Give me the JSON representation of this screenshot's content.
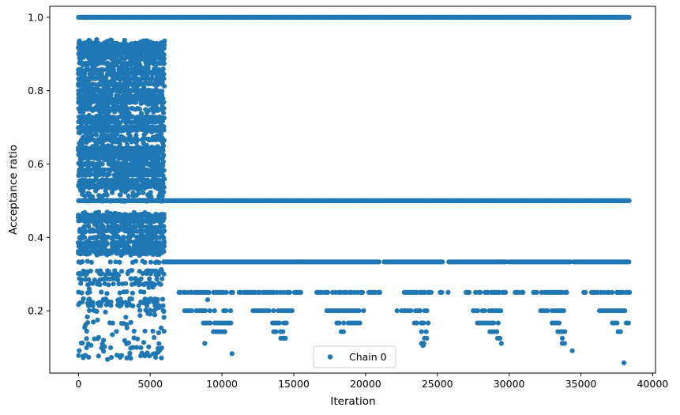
{
  "chart_data": {
    "type": "scatter",
    "title": "",
    "xlabel": "Iteration",
    "ylabel": "Acceptance ratio",
    "xlim": [
      -2000,
      40200
    ],
    "ylim": [
      0.03,
      1.03
    ],
    "xticks": [
      0,
      5000,
      10000,
      15000,
      20000,
      25000,
      30000,
      35000,
      40000
    ],
    "xtick_labels": [
      "0",
      "5000",
      "10000",
      "15000",
      "20000",
      "25000",
      "30000",
      "35000",
      "40000"
    ],
    "yticks": [
      0.2,
      0.4,
      0.6,
      0.8,
      1.0
    ],
    "ytick_labels": [
      "0.2",
      "0.4",
      "0.6",
      "0.8",
      "1.0"
    ],
    "grid": false,
    "legend": {
      "position": "lower-center",
      "entries": [
        "Chain 0"
      ]
    },
    "series": [
      {
        "name": "Chain 0",
        "color": "#1f77b4",
        "marker": "circle",
        "description": "Dense burn-in region 0–6000 with values spread between ~0.06 and ~0.94; afterwards values collapse onto discrete levels 1.0, 0.5, 0.333, 0.25, 0.2, 0.167, 0.143, 0.125, 0.111",
        "x_max": 38400,
        "burn_in_end": 6000,
        "levels_after_burn_in": [
          1.0,
          0.5,
          0.3333,
          0.25,
          0.2,
          0.1667,
          0.1429,
          0.125,
          0.1111,
          0.1
        ],
        "continuous_lines": [
          {
            "y": 1.0,
            "x": [
              0,
              38400
            ]
          },
          {
            "y": 0.5,
            "x": [
              0,
              38400
            ]
          }
        ],
        "segmented_levels": [
          {
            "y": 0.3333,
            "segments": [
              [
                6000,
                15800
              ],
              [
                15900,
                21000
              ],
              [
                21300,
                25400
              ],
              [
                25800,
                29800
              ],
              [
                30000,
                34300
              ],
              [
                34500,
                38400
              ]
            ]
          },
          {
            "y": 0.25,
            "segments": [
              [
                7000,
                10800
              ],
              [
                11200,
                15500
              ],
              [
                16600,
                21000
              ],
              [
                22700,
                24600
              ],
              [
                25200,
                25800
              ],
              [
                27000,
                29800
              ],
              [
                30200,
                31000
              ],
              [
                31700,
                34200
              ],
              [
                35200,
                38400
              ]
            ]
          },
          {
            "y": 0.2,
            "segments": [
              [
                7400,
                10900
              ],
              [
                12000,
                15000
              ],
              [
                17300,
                19900
              ],
              [
                22200,
                24300
              ],
              [
                27500,
                29700
              ],
              [
                32200,
                34000
              ],
              [
                36300,
                38200
              ]
            ]
          },
          {
            "y": 0.1667,
            "segments": [
              [
                8700,
                10700
              ],
              [
                13200,
                14600
              ],
              [
                18000,
                19600
              ],
              [
                23400,
                24400
              ],
              [
                27800,
                29300
              ],
              [
                33000,
                34100
              ],
              [
                37200,
                38400
              ]
            ]
          },
          {
            "y": 0.1429,
            "segments": [
              [
                9400,
                10500
              ],
              [
                13600,
                14300
              ],
              [
                18300,
                18700
              ],
              [
                23900,
                24300
              ],
              [
                28500,
                29200
              ],
              [
                33400,
                34000
              ],
              [
                37600,
                38000
              ]
            ]
          },
          {
            "y": 0.125,
            "segments": [
              [
                14100,
                14500
              ],
              [
                24100,
                24300
              ],
              [
                29200,
                29400
              ],
              [
                33700,
                34000
              ]
            ]
          },
          {
            "y": 0.1111,
            "segments": [
              [
                8800,
                9000
              ],
              [
                23900,
                24100
              ],
              [
                29300,
                29500
              ],
              [
                33700,
                34000
              ]
            ]
          }
        ],
        "isolated_points": [
          {
            "x": 10700,
            "y": 0.083
          },
          {
            "x": 34400,
            "y": 0.091
          },
          {
            "x": 38000,
            "y": 0.058
          },
          {
            "x": 24000,
            "y": 0.105
          },
          {
            "x": 9000,
            "y": 0.23
          }
        ]
      }
    ]
  }
}
